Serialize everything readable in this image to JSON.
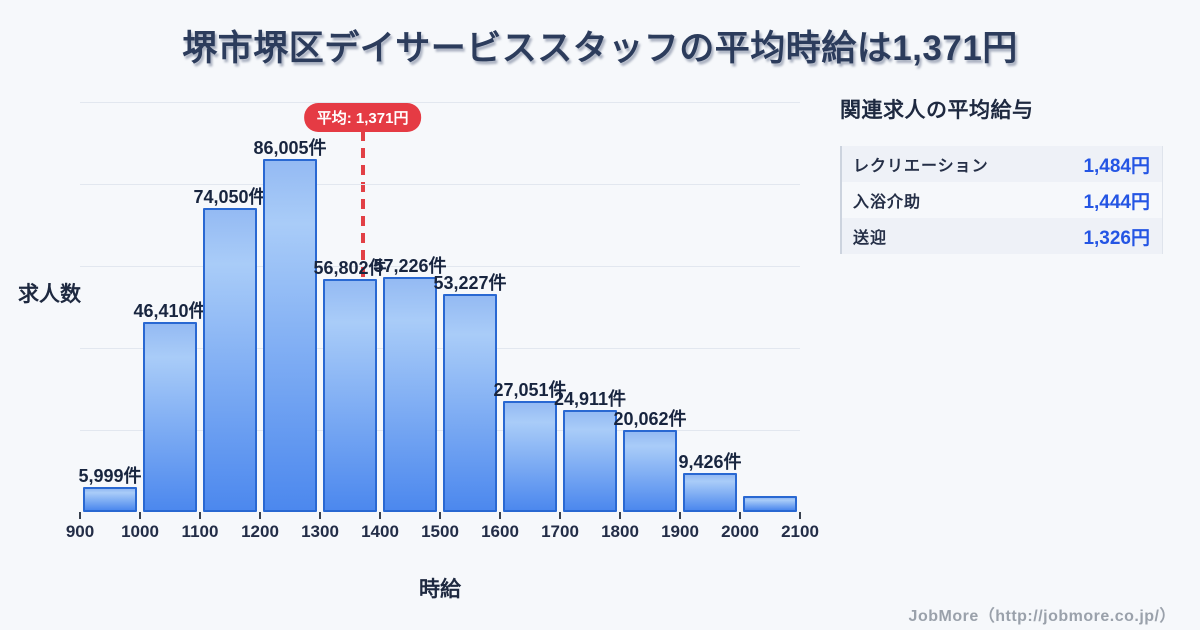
{
  "title": "堺市堺区デイサービススタッフの平均時給は1,371円",
  "chart_data": {
    "type": "bar",
    "subtype": "histogram",
    "title": "堺市堺区デイサービススタッフの平均時給は1,371円",
    "xlabel": "時給",
    "ylabel": "求人数",
    "bin_edges": [
      900,
      1000,
      1100,
      1200,
      1300,
      1400,
      1500,
      1600,
      1700,
      1800,
      1900,
      2000,
      2100
    ],
    "values": [
      5999,
      46410,
      74050,
      86005,
      56802,
      57226,
      53227,
      27051,
      24911,
      20062,
      9426,
      3800
    ],
    "value_labels": [
      "5,999件",
      "46,410件",
      "74,050件",
      "86,005件",
      "56,802件",
      "57,226件",
      "53,227件",
      "27,051件",
      "24,911件",
      "20,062件",
      "9,426件",
      ""
    ],
    "mean": 1371,
    "mean_label": "平均: 1,371円",
    "ylim": [
      0,
      100000
    ],
    "gridline_step": 20000,
    "grid": true,
    "legend": false,
    "colors": {
      "bar_fill_top": "#a9ccf8",
      "bar_fill_bottom": "#4c88ee",
      "bar_border": "#2968d2",
      "mean_red": "#e53b44",
      "title_navy": "#2c3c5c",
      "label_navy": "#1e2940",
      "value_blue": "#2455e4",
      "background": "#f6f8fb"
    }
  },
  "side_panel": {
    "title": "関連求人の平均給与",
    "rows": [
      {
        "label": "レクリエーション",
        "value": "1,484円"
      },
      {
        "label": "入浴介助",
        "value": "1,444円"
      },
      {
        "label": "送迎",
        "value": "1,326円"
      }
    ]
  },
  "footer": {
    "credit": "JobMore（http://jobmore.co.jp/）"
  }
}
